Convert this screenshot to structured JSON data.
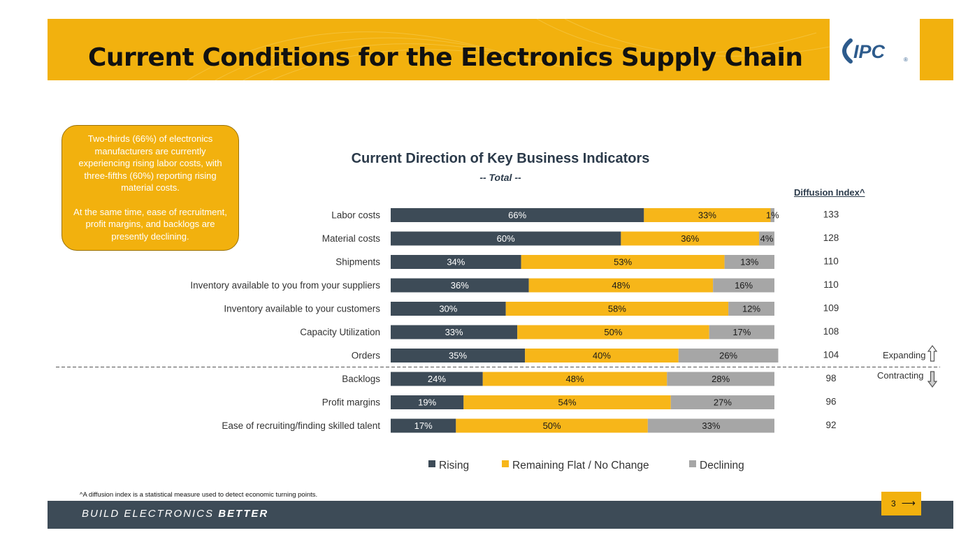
{
  "header": {
    "title": "Current Conditions for the Electronics Supply Chain"
  },
  "logo": {
    "text": "IPC",
    "registered": "®"
  },
  "callout": {
    "paragraph1": "Two-thirds (66%) of electronics manufacturers are currently experiencing rising labor costs, with three-fifths (60%) reporting rising material costs.",
    "paragraph2": "At the same time, ease of recruitment, profit margins, and backlogs are presently declining."
  },
  "colors": {
    "rising": "#3D4B57",
    "flat": "#F7B619",
    "declining": "#A6A6A6",
    "accent": "#F2B10E"
  },
  "diffusion": {
    "header": "Diffusion Index^",
    "expanding_label": "Expanding",
    "contracting_label": "Contracting",
    "expanding_icon": "arrow-up-icon",
    "contracting_icon": "arrow-down-icon"
  },
  "chart_data": {
    "type": "bar",
    "stacked": true,
    "orientation": "horizontal",
    "title": "Current Direction of Key Business Indicators",
    "subtitle": "-- Total --",
    "categories": [
      "Labor costs",
      "Material costs",
      "Shipments",
      "Inventory available to you from your suppliers",
      "Inventory available to your customers",
      "Capacity Utilization",
      "Orders",
      "Backlogs",
      "Profit margins",
      "Ease of recruiting/finding skilled talent"
    ],
    "series": [
      {
        "name": "Rising",
        "values": [
          66,
          60,
          34,
          36,
          30,
          33,
          35,
          24,
          19,
          17
        ]
      },
      {
        "name": "Remaining Flat / No Change",
        "values": [
          33,
          36,
          53,
          48,
          58,
          50,
          40,
          48,
          54,
          50
        ]
      },
      {
        "name": "Declining",
        "values": [
          1,
          4,
          13,
          16,
          12,
          17,
          26,
          28,
          27,
          33
        ]
      }
    ],
    "diffusion_index": [
      133,
      128,
      110,
      110,
      109,
      108,
      104,
      98,
      96,
      92
    ],
    "legend_position": "bottom"
  },
  "footnote": "^A diffusion index is a statistical measure used to detect economic turning points.",
  "footer": {
    "tagline_regular": "BUILD ELECTRONICS ",
    "tagline_bold": "BETTER",
    "page_number": "3",
    "next_icon": "arrow-right-icon"
  }
}
